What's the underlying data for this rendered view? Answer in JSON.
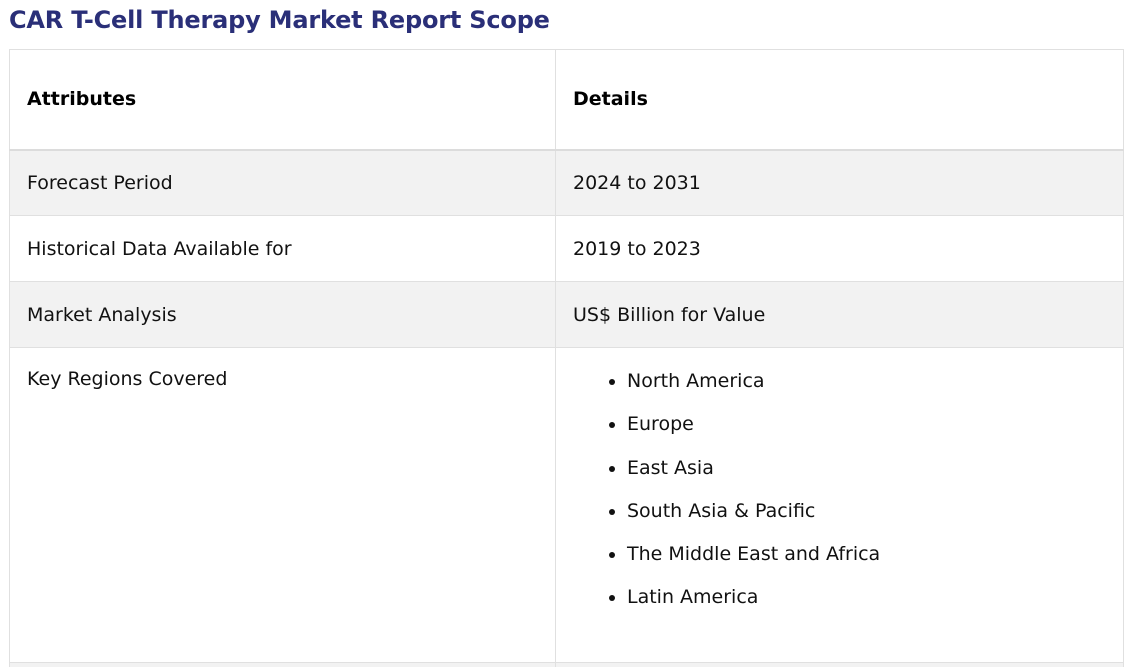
{
  "title": "CAR T-Cell Therapy Market Report Scope",
  "table": {
    "headers": {
      "attributes": "Attributes",
      "details": "Details"
    },
    "rows": [
      {
        "attribute": "Forecast Period",
        "detail": "2024 to 2031"
      },
      {
        "attribute": "Historical Data Available for",
        "detail": "2019 to 2023"
      },
      {
        "attribute": "Market Analysis",
        "detail": "US$ Billion for Value"
      }
    ],
    "regions": {
      "attribute": "Key Regions Covered",
      "items": [
        "North America",
        "Europe",
        "East Asia",
        "South Asia & Pacific",
        "The Middle East and Africa",
        "Latin America"
      ]
    }
  }
}
